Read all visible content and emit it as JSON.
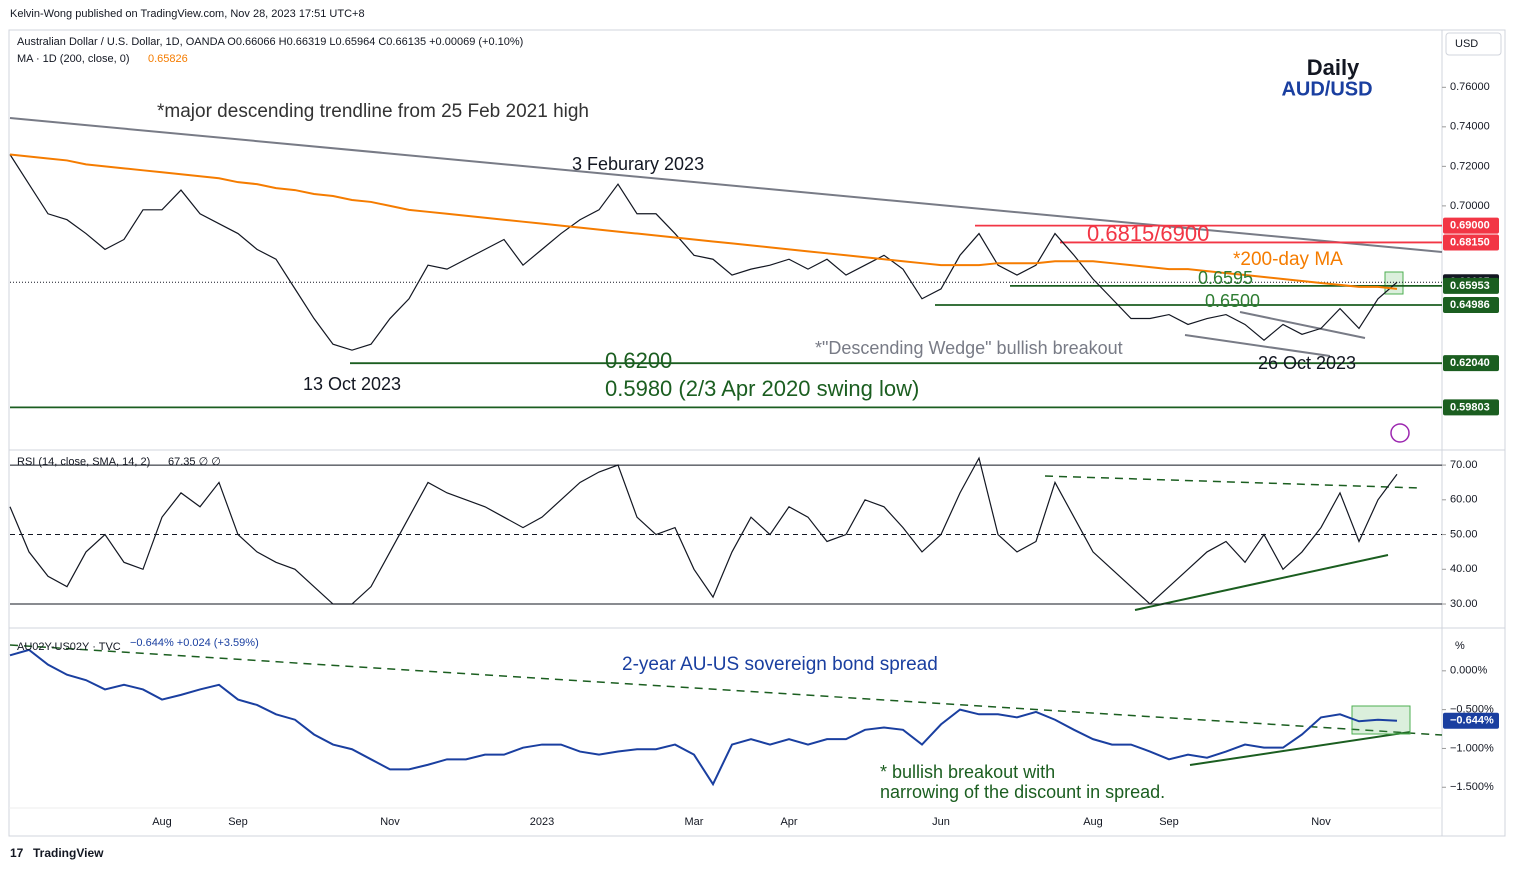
{
  "header": {
    "published": "Kelvin-Wong published on TradingView.com, Nov 28, 2023 17:51 UTC+8",
    "legend": "Australian Dollar / U.S. Dollar, 1D, OANDA  O0.66066  H0.66319  L0.65964  C0.66135  +0.00069 (+0.10%)",
    "ma_legend": "MA · 1D (200, close, 0)",
    "ma_value": "0.65826",
    "currency": "USD",
    "brand": "TradingView"
  },
  "chart_data": [
    {
      "type": "line",
      "ylim": [
        0.579,
        0.789
      ],
      "yticks": [
        {
          "value": 0.76,
          "label": "0.76000"
        },
        {
          "value": 0.74,
          "label": "0.74000"
        },
        {
          "value": 0.72,
          "label": "0.72000"
        },
        {
          "value": 0.7,
          "label": "0.70000"
        }
      ],
      "series": [
        {
          "name": "AUD/USD",
          "color": "#131722",
          "values": [
            0.726,
            0.711,
            0.696,
            0.693,
            0.686,
            0.678,
            0.683,
            0.698,
            0.698,
            0.708,
            0.696,
            0.691,
            0.686,
            0.678,
            0.673,
            0.658,
            0.643,
            0.63,
            0.627,
            0.63,
            0.643,
            0.653,
            0.67,
            0.668,
            0.673,
            0.678,
            0.683,
            0.67,
            0.678,
            0.686,
            0.693,
            0.698,
            0.711,
            0.696,
            0.696,
            0.686,
            0.675,
            0.673,
            0.665,
            0.668,
            0.67,
            0.673,
            0.668,
            0.673,
            0.665,
            0.67,
            0.675,
            0.668,
            0.653,
            0.658,
            0.675,
            0.686,
            0.67,
            0.665,
            0.67,
            0.686,
            0.675,
            0.663,
            0.653,
            0.643,
            0.643,
            0.645,
            0.64,
            0.643,
            0.645,
            0.64,
            0.632,
            0.64,
            0.635,
            0.638,
            0.648,
            0.638,
            0.653,
            0.66135
          ]
        },
        {
          "name": "MA 200",
          "color": "#f57c00",
          "values": [
            0.726,
            0.725,
            0.724,
            0.723,
            0.721,
            0.72,
            0.719,
            0.718,
            0.717,
            0.716,
            0.715,
            0.714,
            0.712,
            0.711,
            0.709,
            0.708,
            0.706,
            0.705,
            0.703,
            0.702,
            0.7,
            0.698,
            0.697,
            0.696,
            0.695,
            0.694,
            0.693,
            0.692,
            0.691,
            0.69,
            0.689,
            0.688,
            0.687,
            0.686,
            0.685,
            0.684,
            0.683,
            0.682,
            0.681,
            0.68,
            0.679,
            0.678,
            0.677,
            0.676,
            0.675,
            0.674,
            0.673,
            0.672,
            0.671,
            0.67,
            0.67,
            0.67,
            0.671,
            0.671,
            0.671,
            0.672,
            0.672,
            0.672,
            0.671,
            0.67,
            0.669,
            0.668,
            0.668,
            0.667,
            0.666,
            0.665,
            0.664,
            0.663,
            0.662,
            0.661,
            0.66,
            0.659,
            0.659,
            0.658
          ]
        }
      ],
      "levels": [
        {
          "value": 0.69,
          "label": "0.69000",
          "color": "#f23645"
        },
        {
          "value": 0.6815,
          "label": "0.68150",
          "color": "#f23645"
        },
        {
          "value": 0.66135,
          "label": "0.66135",
          "color": "#131722"
        },
        {
          "value": 0.65953,
          "label": "0.65953",
          "color": "#1b5e20"
        },
        {
          "value": 0.64986,
          "label": "0.64986",
          "color": "#1b5e20"
        },
        {
          "value": 0.6204,
          "label": "0.62040",
          "color": "#1b5e20"
        },
        {
          "value": 0.59803,
          "label": "0.59803",
          "color": "#1b5e20"
        }
      ],
      "annotations": [
        "*major descending trendline from 25 Feb 2021 high",
        "3 Feburary 2023",
        "13 Oct 2023",
        "0.6815/6900",
        "*200-day MA",
        "0.6595",
        "0.6500",
        "*\"Descending Wedge\" bullish breakout",
        "26 Oct 2023",
        "0.6200",
        "0.5980 (2/3 Apr 2020 swing low)",
        "Daily",
        "AUD/USD"
      ]
    },
    {
      "type": "line",
      "title": "RSI (14, close, SMA, 14, 2)",
      "value_label": "67.35  ∅  ∅",
      "ylim": [
        25.4,
        72.9
      ],
      "yticks": [
        {
          "value": 70,
          "label": "70.00"
        },
        {
          "value": 60,
          "label": "60.00"
        },
        {
          "value": 50,
          "label": "50.00"
        },
        {
          "value": 40,
          "label": "40.00"
        },
        {
          "value": 30,
          "label": "30.00"
        }
      ],
      "levels": [
        {
          "value": 70
        },
        {
          "value": 50,
          "dashed": true
        },
        {
          "value": 30
        }
      ],
      "series": [
        {
          "name": "RSI",
          "color": "#131722",
          "values": [
            58,
            45,
            38,
            35,
            45,
            50,
            42,
            40,
            55,
            62,
            58,
            65,
            50,
            45,
            42,
            40,
            35,
            30,
            30,
            35,
            45,
            55,
            65,
            62,
            60,
            58,
            55,
            52,
            55,
            60,
            65,
            68,
            70,
            55,
            50,
            52,
            40,
            32,
            45,
            55,
            50,
            58,
            55,
            48,
            50,
            60,
            58,
            52,
            45,
            50,
            62,
            72,
            50,
            45,
            48,
            65,
            55,
            45,
            40,
            35,
            30,
            35,
            40,
            45,
            48,
            42,
            50,
            40,
            45,
            52,
            62,
            48,
            60,
            67.35
          ]
        }
      ]
    },
    {
      "type": "line",
      "title": "AU02Y-US02Y · TVC",
      "legend_values": "−0.644%  +0.024 (+3.59%)",
      "unit": "%",
      "ylim": [
        -2.115,
        0.397
      ],
      "yticks": [
        {
          "value": 0,
          "label": "0.000%"
        },
        {
          "value": -0.5,
          "label": "−0.500%"
        },
        {
          "value": -1,
          "label": "−1.000%"
        },
        {
          "value": -1.5,
          "label": "−1.500%"
        }
      ],
      "current": {
        "value": -0.644,
        "label": "−0.644%"
      },
      "categories": [
        null,
        null,
        null,
        null,
        null,
        null,
        null,
        null,
        "Aug",
        null,
        null,
        null,
        "Sep",
        null,
        null,
        null,
        null,
        null,
        null,
        null,
        "Nov",
        null,
        null,
        null,
        null,
        null,
        null,
        null,
        "2023",
        null,
        null,
        null,
        null,
        null,
        null,
        null,
        "Mar",
        null,
        null,
        null,
        null,
        "Apr",
        null,
        null,
        null,
        null,
        null,
        null,
        null,
        "Jun",
        null,
        null,
        null,
        null,
        null,
        null,
        null,
        "Aug",
        null,
        null,
        null,
        "Sep",
        null,
        null,
        null,
        null,
        null,
        null,
        null,
        "Nov",
        null,
        null,
        null,
        null
      ],
      "series": [
        {
          "name": "AU02Y-US02Y",
          "color": "#1a3fa0",
          "values": [
            0.2,
            0.27,
            0.08,
            -0.05,
            -0.12,
            -0.24,
            -0.18,
            -0.24,
            -0.37,
            -0.31,
            -0.24,
            -0.18,
            -0.37,
            -0.44,
            -0.56,
            -0.63,
            -0.82,
            -0.95,
            -1.01,
            -1.14,
            -1.27,
            -1.27,
            -1.21,
            -1.14,
            -1.14,
            -1.08,
            -1.08,
            -0.99,
            -0.95,
            -0.95,
            -1.04,
            -1.08,
            -1.04,
            -1.01,
            -1.01,
            -0.95,
            -1.08,
            -1.46,
            -0.95,
            -0.88,
            -0.95,
            -0.88,
            -0.95,
            -0.88,
            -0.88,
            -0.76,
            -0.73,
            -0.76,
            -0.95,
            -0.69,
            -0.5,
            -0.56,
            -0.56,
            -0.6,
            -0.53,
            -0.63,
            -0.76,
            -0.88,
            -0.95,
            -0.95,
            -1.04,
            -1.14,
            -1.08,
            -1.12,
            -1.04,
            -0.95,
            -0.99,
            -0.99,
            -0.82,
            -0.6,
            -0.56,
            -0.65,
            -0.63,
            -0.644
          ]
        }
      ],
      "annotations": [
        "2-year AU-US sovereign bond spread",
        "* bullish breakout with",
        "narrowing of the discount in spread."
      ]
    }
  ]
}
